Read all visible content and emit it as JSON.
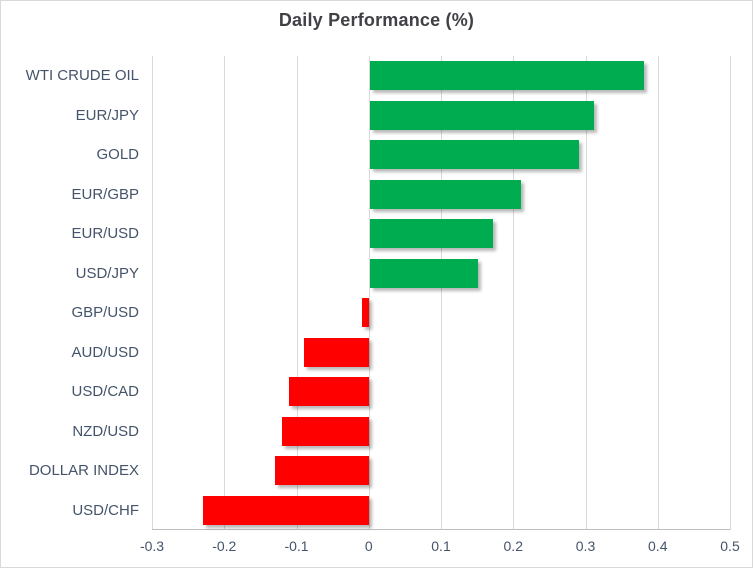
{
  "chart_data": {
    "type": "bar",
    "orientation": "horizontal",
    "title": "Daily Performance (%)",
    "categories": [
      "WTI CRUDE OIL",
      "EUR/JPY",
      "GOLD",
      "EUR/GBP",
      "EUR/USD",
      "USD/JPY",
      "GBP/USD",
      "AUD/USD",
      "USD/CAD",
      "NZD/USD",
      "DOLLAR INDEX",
      "USD/CHF"
    ],
    "values": [
      0.38,
      0.31,
      0.29,
      0.21,
      0.17,
      0.15,
      -0.01,
      -0.09,
      -0.11,
      -0.12,
      -0.13,
      -0.23
    ],
    "xlim": [
      -0.3,
      0.5
    ],
    "x_ticks": [
      -0.3,
      -0.2,
      -0.1,
      0,
      0.1,
      0.2,
      0.3,
      0.4,
      0.5
    ],
    "x_tick_labels": [
      "-0.3",
      "-0.2",
      "-0.1",
      "0",
      "0.1",
      "0.2",
      "0.3",
      "0.4",
      "0.5"
    ],
    "grid": true,
    "legend": false,
    "colors": {
      "positive": "#00AC50",
      "negative": "#FF0000",
      "gridline": "#D9D9D9",
      "axis_line": "#BFBFBF",
      "label_text": "#44546A",
      "title_text": "#404047",
      "border": "#D9D9D9",
      "background": "#FFFFFF"
    }
  }
}
